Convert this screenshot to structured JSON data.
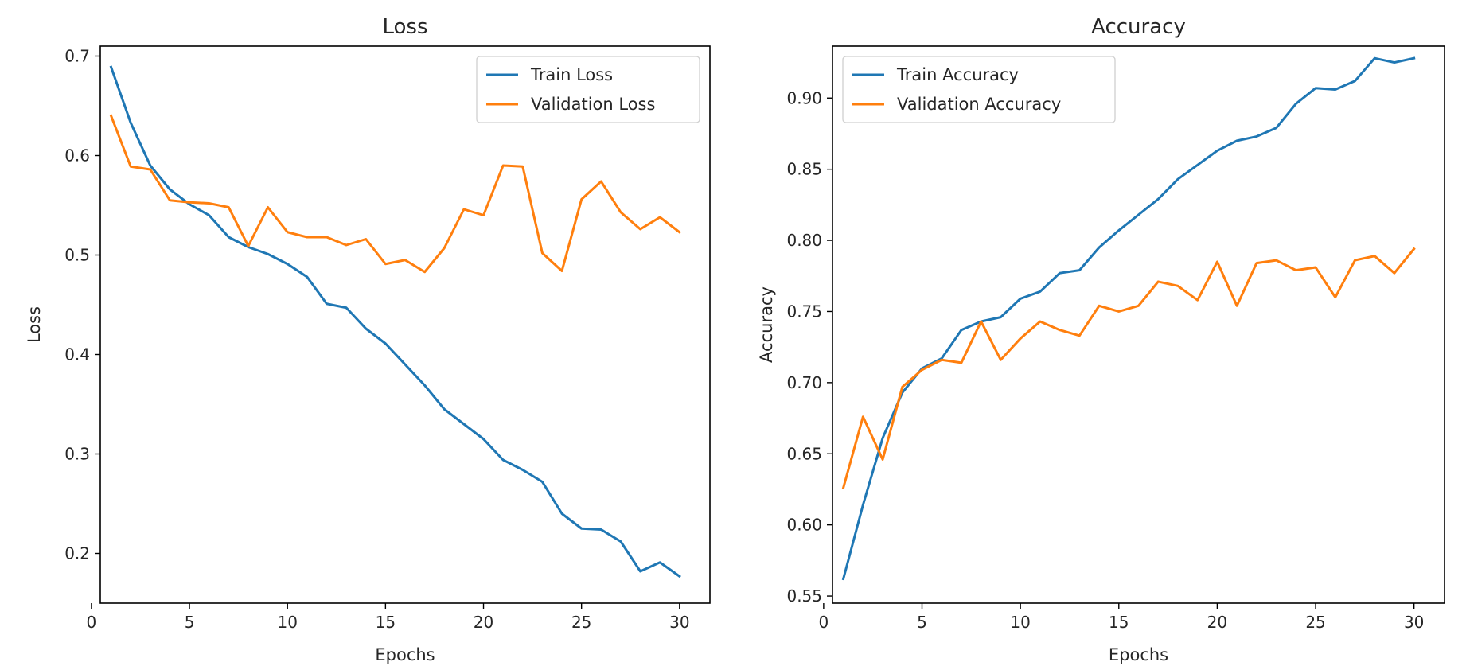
{
  "chart_data": [
    {
      "type": "line",
      "title": "Loss",
      "xlabel": "Epochs",
      "ylabel": "Loss",
      "xlim": [
        0.45,
        31.55
      ],
      "ylim": [
        0.15,
        0.71
      ],
      "xticks": [
        0,
        5,
        10,
        15,
        20,
        25,
        30
      ],
      "xtick_labels": [
        "0",
        "5",
        "10",
        "15",
        "20",
        "25",
        "30"
      ],
      "yticks": [
        0.2,
        0.3,
        0.4,
        0.5,
        0.6,
        0.7
      ],
      "ytick_labels": [
        "0.2",
        "0.3",
        "0.4",
        "0.5",
        "0.6",
        "0.7"
      ],
      "grid": false,
      "legend_position": "upper right",
      "x": [
        1,
        2,
        3,
        4,
        5,
        6,
        7,
        8,
        9,
        10,
        11,
        12,
        13,
        14,
        15,
        16,
        17,
        18,
        19,
        20,
        21,
        22,
        23,
        24,
        25,
        26,
        27,
        28,
        29,
        30
      ],
      "series": [
        {
          "name": "Train Loss",
          "color": "#1f77b4",
          "values": [
            0.689,
            0.633,
            0.59,
            0.566,
            0.551,
            0.54,
            0.518,
            0.508,
            0.501,
            0.491,
            0.478,
            0.451,
            0.447,
            0.426,
            0.411,
            0.39,
            0.369,
            0.345,
            0.33,
            0.315,
            0.294,
            0.284,
            0.272,
            0.24,
            0.225,
            0.224,
            0.212,
            0.182,
            0.191,
            0.177
          ]
        },
        {
          "name": "Validation Loss",
          "color": "#ff7f0e",
          "values": [
            0.64,
            0.589,
            0.586,
            0.555,
            0.553,
            0.552,
            0.548,
            0.509,
            0.548,
            0.523,
            0.518,
            0.518,
            0.51,
            0.516,
            0.491,
            0.495,
            0.483,
            0.507,
            0.546,
            0.54,
            0.59,
            0.589,
            0.502,
            0.484,
            0.556,
            0.574,
            0.543,
            0.526,
            0.538,
            0.523
          ]
        }
      ]
    },
    {
      "type": "line",
      "title": "Accuracy",
      "xlabel": "Epochs",
      "ylabel": "Accuracy",
      "xlim": [
        0.45,
        31.55
      ],
      "ylim": [
        0.545,
        0.9365
      ],
      "xticks": [
        0,
        5,
        10,
        15,
        20,
        25,
        30
      ],
      "xtick_labels": [
        "0",
        "5",
        "10",
        "15",
        "20",
        "25",
        "30"
      ],
      "yticks": [
        0.55,
        0.6,
        0.65,
        0.7,
        0.75,
        0.8,
        0.85,
        0.9
      ],
      "ytick_labels": [
        "0.55",
        "0.60",
        "0.65",
        "0.70",
        "0.75",
        "0.80",
        "0.85",
        "0.90"
      ],
      "grid": false,
      "legend_position": "upper left",
      "x": [
        1,
        2,
        3,
        4,
        5,
        6,
        7,
        8,
        9,
        10,
        11,
        12,
        13,
        14,
        15,
        16,
        17,
        18,
        19,
        20,
        21,
        22,
        23,
        24,
        25,
        26,
        27,
        28,
        29,
        30
      ],
      "series": [
        {
          "name": "Train Accuracy",
          "color": "#1f77b4",
          "values": [
            0.562,
            0.614,
            0.661,
            0.693,
            0.71,
            0.717,
            0.737,
            0.743,
            0.746,
            0.759,
            0.764,
            0.777,
            0.779,
            0.795,
            0.807,
            0.818,
            0.829,
            0.843,
            0.853,
            0.863,
            0.87,
            0.873,
            0.879,
            0.896,
            0.907,
            0.906,
            0.912,
            0.928,
            0.925,
            0.928
          ]
        },
        {
          "name": "Validation Accuracy",
          "color": "#ff7f0e",
          "values": [
            0.626,
            0.676,
            0.646,
            0.697,
            0.709,
            0.716,
            0.714,
            0.743,
            0.716,
            0.731,
            0.743,
            0.737,
            0.733,
            0.754,
            0.75,
            0.754,
            0.771,
            0.768,
            0.758,
            0.785,
            0.754,
            0.784,
            0.786,
            0.779,
            0.781,
            0.76,
            0.786,
            0.789,
            0.777,
            0.794
          ]
        }
      ]
    }
  ]
}
